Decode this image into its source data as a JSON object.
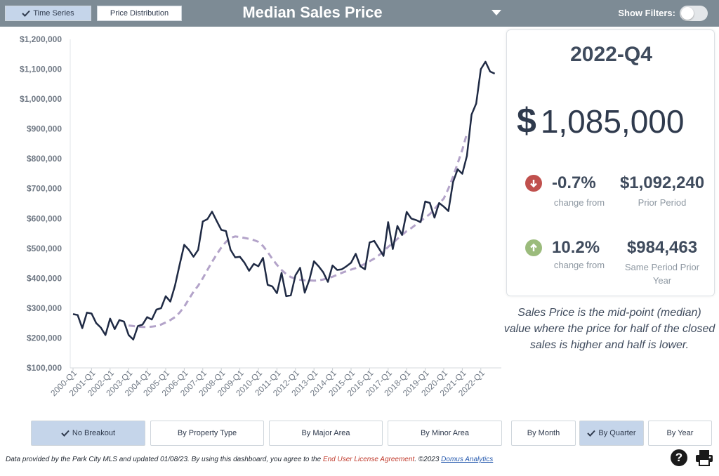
{
  "header": {
    "title": "Median Sales Price",
    "tabs": [
      {
        "label": "Time Series",
        "active": true
      },
      {
        "label": "Price Distribution",
        "active": false
      }
    ],
    "show_filters_label": "Show Filters:",
    "show_filters_on": false
  },
  "kpi": {
    "period": "2022-Q4",
    "currency_symbol": "$",
    "value": "1,085,000",
    "change_prior_pct": "-0.7%",
    "change_prior_caption": "change from",
    "prior_period_value": "$1,092,240",
    "prior_period_caption": "Prior Period",
    "change_year_pct": "10.2%",
    "change_year_caption": "change from",
    "same_period_value": "$984,463",
    "same_period_caption": "Same Period Prior Year"
  },
  "description": "Sales Price is the mid-point (median) value where the price for half of the closed sales is higher and half is lower.",
  "breakout_buttons": [
    {
      "label": "No Breakout",
      "active": true
    },
    {
      "label": "By Property Type",
      "active": false
    },
    {
      "label": "By Major Area",
      "active": false
    },
    {
      "label": "By Minor Area",
      "active": false
    }
  ],
  "period_buttons": [
    {
      "label": "By Month",
      "active": false
    },
    {
      "label": "By Quarter",
      "active": true
    },
    {
      "label": "By Year",
      "active": false
    }
  ],
  "footer": {
    "prefix": "Data provided by the Park City MLS and updated 01/08/23.  By using this dashboard, you agree to the ",
    "license_link": "End User License Agreement",
    "middle": ".  ©2023 ",
    "company_link": "Domus Analytics"
  },
  "colors": {
    "header_bg": "#7d8b95",
    "active_button": "#c5d5ea",
    "median_line": "#1f2a44",
    "trend_line": "#b3a3c9",
    "down_arrow": "#c0504d",
    "up_arrow": "#9bbb7c"
  },
  "icons": [
    "check-icon",
    "chevron-down-icon",
    "arrow-down-icon",
    "arrow-up-icon",
    "help-icon",
    "print-icon"
  ],
  "chart_data": {
    "type": "line",
    "ylim": [
      100000,
      1200000
    ],
    "y_ticks": [
      "$100,000",
      "$200,000",
      "$300,000",
      "$400,000",
      "$500,000",
      "$600,000",
      "$700,000",
      "$800,000",
      "$900,000",
      "$1,000,000",
      "$1,100,000",
      "$1,200,000"
    ],
    "x_ticks": [
      "2000-Q1",
      "2001-Q1",
      "2002-Q1",
      "2003-Q1",
      "2004-Q1",
      "2005-Q1",
      "2006-Q1",
      "2007-Q1",
      "2008-Q1",
      "2009-Q1",
      "2010-Q1",
      "2011-Q1",
      "2012-Q1",
      "2013-Q1",
      "2014-Q1",
      "2015-Q1",
      "2016-Q1",
      "2017-Q1",
      "2018-Q1",
      "2019-Q1",
      "2020-Q1",
      "2021-Q1",
      "2022-Q1"
    ],
    "x_start": "2000-Q1",
    "grid": false,
    "series": [
      {
        "values": [
          280000,
          277000,
          233000,
          285000,
          282000,
          250000,
          235000,
          210000,
          265000,
          230000,
          260000,
          255000,
          210000,
          195000,
          240000,
          245000,
          270000,
          262000,
          295000,
          300000,
          340000,
          322000,
          375000,
          445000,
          512000,
          495000,
          472000,
          495000,
          590000,
          598000,
          623000,
          592000,
          562000,
          558000,
          495000,
          470000,
          472000,
          452000,
          425000,
          448000,
          440000,
          468000,
          378000,
          373000,
          350000,
          418000,
          340000,
          343000,
          410000,
          435000,
          352000,
          395000,
          457000,
          440000,
          420000,
          388000,
          443000,
          428000,
          430000,
          440000,
          452000,
          482000,
          440000,
          430000,
          520000,
          525000,
          500000,
          475000,
          588000,
          498000,
          575000,
          545000,
          622000,
          600000,
          595000,
          588000,
          657000,
          652000,
          603000,
          652000,
          640000,
          625000,
          722000,
          765000,
          750000,
          810000,
          948000,
          985000,
          1100000,
          1125000,
          1092000,
          1085000
        ]
      },
      {
        "style": "dashed",
        "x_start": "2003-Q1",
        "values": [
          242000,
          240000,
          238000,
          237000,
          237000,
          238000,
          240000,
          245000,
          252000,
          260000,
          270000,
          285000,
          305000,
          330000,
          355000,
          375000,
          400000,
          428000,
          455000,
          480000,
          503000,
          522000,
          535000,
          540000,
          538000,
          535000,
          532000,
          528000,
          522000,
          508000,
          488000,
          465000,
          445000,
          428000,
          414000,
          404000,
          399000,
          395000,
          393000,
          393000,
          392000,
          393000,
          396000,
          400000,
          405000,
          412000,
          418000,
          424000,
          429000,
          434000,
          441000,
          448000,
          457000,
          466000,
          477000,
          490000,
          505000,
          518000,
          532000,
          545000,
          558000,
          568000,
          580000,
          592000,
          603000,
          615000,
          632000,
          650000,
          667000,
          700000,
          740000,
          785000,
          830000,
          885000
        ]
      }
    ]
  }
}
